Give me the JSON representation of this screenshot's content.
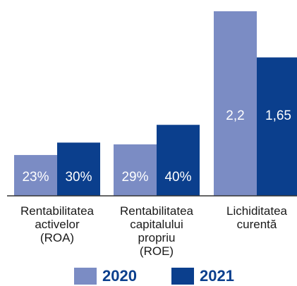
{
  "chart_data": [
    {
      "type": "bar",
      "categories": [
        "Rentabilitatea activelor (ROA)",
        "Rentabilitatea capitalului propriu (ROE)"
      ],
      "series": [
        {
          "name": "2020",
          "color": "#7b8cc4",
          "values": [
            23,
            29
          ],
          "value_labels": [
            "23%",
            "29%"
          ]
        },
        {
          "name": "2021",
          "color": "#0b3f8d",
          "values": [
            30,
            40
          ],
          "value_labels": [
            "30%",
            "40%"
          ]
        }
      ],
      "ylim": [
        0,
        104
      ]
    },
    {
      "type": "bar",
      "categories": [
        "Lichiditatea curentă"
      ],
      "series": [
        {
          "color": "#7b8cc4",
          "values": [
            2.2
          ],
          "value_labels": [
            "2,2"
          ]
        },
        {
          "color": "#0b3f8d",
          "values": [
            1.65
          ],
          "value_labels": [
            "1,65"
          ]
        }
      ],
      "ylim": [
        0,
        2.2
      ]
    }
  ]
}
